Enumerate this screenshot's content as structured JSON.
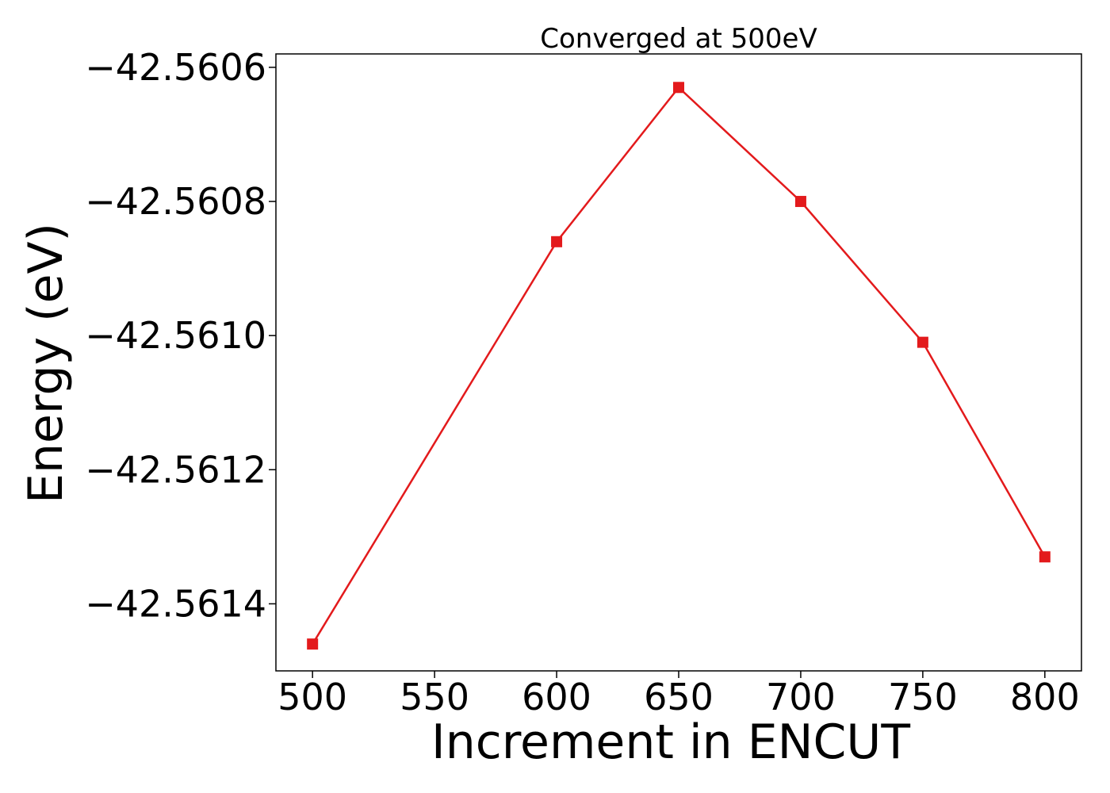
{
  "chart_data": {
    "type": "line",
    "title": "Converged at 500eV",
    "xlabel": "Increment in ENCUT",
    "ylabel": "Energy (eV)",
    "x": [
      500,
      600,
      650,
      700,
      750,
      800
    ],
    "series": [
      {
        "values": [
          -42.56146,
          -42.56086,
          -42.56063,
          -42.5608,
          -42.56101,
          -42.56133
        ],
        "color": "#e31a1c",
        "marker": "square"
      }
    ],
    "xlim": [
      485,
      815
    ],
    "ylim": [
      -42.5615,
      -42.56058
    ],
    "x_ticks": [
      500,
      550,
      600,
      650,
      700,
      750,
      800
    ],
    "x_tick_labels": [
      "500",
      "550",
      "600",
      "650",
      "700",
      "750",
      "800"
    ],
    "y_ticks": [
      -42.5606,
      -42.5608,
      -42.561,
      -42.5612,
      -42.5614
    ],
    "y_tick_labels": [
      "−42.5606",
      "−42.5608",
      "−42.5610",
      "−42.5612",
      "−42.5614"
    ],
    "grid": false,
    "legend": "none"
  }
}
